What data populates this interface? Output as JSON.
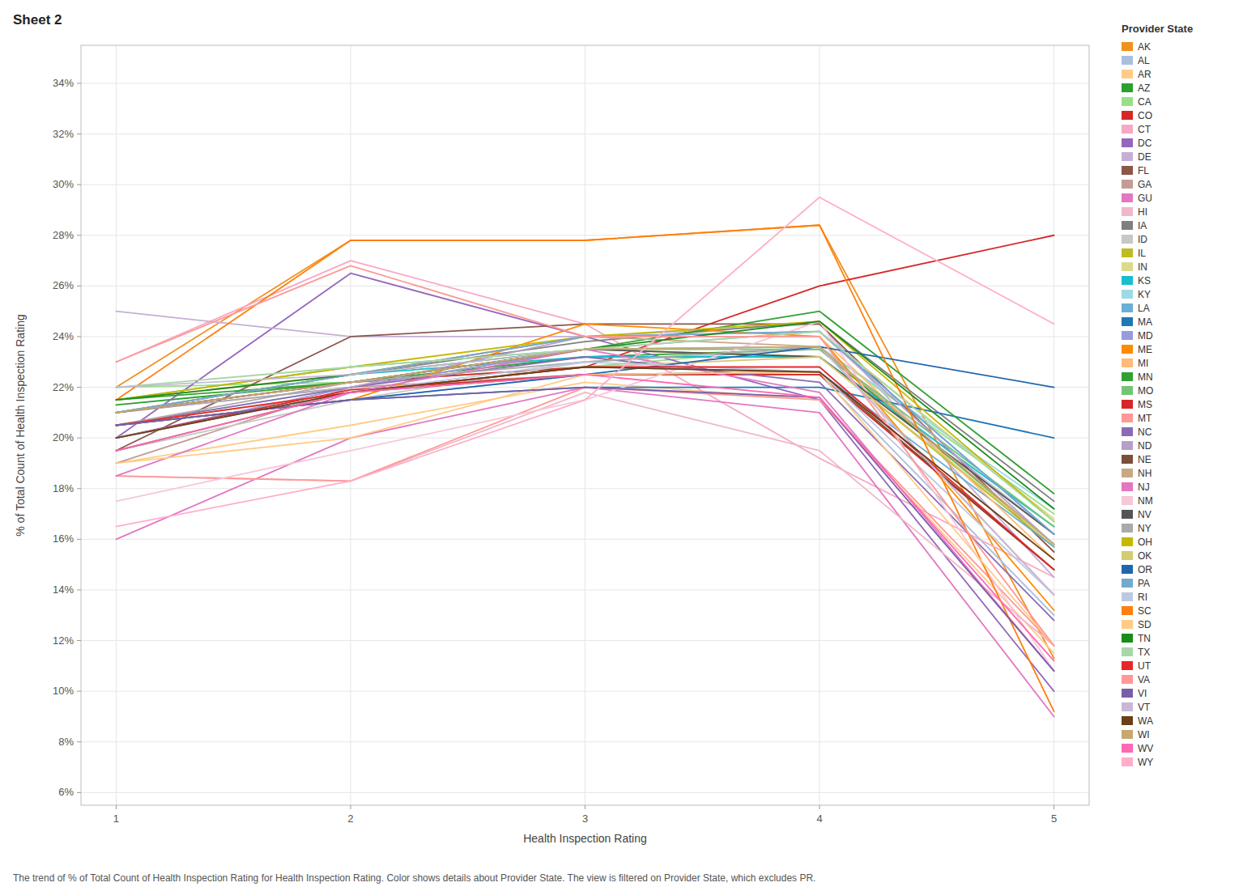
{
  "chart_data": {
    "type": "line",
    "title": "Sheet 2",
    "x_label": "Health Inspection Rating",
    "y_label": "% of Total Count of Health Inspection Rating",
    "caption": "The trend of % of Total Count of Health Inspection Rating for Health Inspection Rating.  Color shows details about Provider State. The view is filtered on Provider State, which excludes PR.",
    "legend_title": "Provider State",
    "legend": "right",
    "grid": true,
    "x": [
      1,
      2,
      3,
      4,
      5
    ],
    "xlim": [
      0.85,
      5.15
    ],
    "xticks": [
      1,
      2,
      3,
      4,
      5
    ],
    "ylim": [
      0.055,
      0.355
    ],
    "yticks": [
      {
        "value": 0.06,
        "label": "6%"
      },
      {
        "value": 0.08,
        "label": "8%"
      },
      {
        "value": 0.1,
        "label": "10%"
      },
      {
        "value": 0.12,
        "label": "12%"
      },
      {
        "value": 0.14,
        "label": "14%"
      },
      {
        "value": 0.16,
        "label": "16%"
      },
      {
        "value": 0.18,
        "label": "18%"
      },
      {
        "value": 0.2,
        "label": "20%"
      },
      {
        "value": 0.22,
        "label": "22%"
      },
      {
        "value": 0.24,
        "label": "24%"
      },
      {
        "value": 0.26,
        "label": "26%"
      },
      {
        "value": 0.28,
        "label": "28%"
      },
      {
        "value": 0.3,
        "label": "30%"
      },
      {
        "value": 0.32,
        "label": "32%"
      },
      {
        "value": 0.34,
        "label": "34%"
      }
    ],
    "series": [
      {
        "name": "AK",
        "color": "#F0901E",
        "values": [
          0.22,
          0.278,
          0.278,
          0.284,
          0.113
        ]
      },
      {
        "name": "AL",
        "color": "#AABFDD",
        "values": [
          0.205,
          0.215,
          0.225,
          0.225,
          0.13
        ]
      },
      {
        "name": "AR",
        "color": "#FFCC88",
        "values": [
          0.19,
          0.205,
          0.222,
          0.215,
          0.115
        ]
      },
      {
        "name": "AZ",
        "color": "#2CA02C",
        "values": [
          0.213,
          0.222,
          0.232,
          0.235,
          0.158
        ]
      },
      {
        "name": "CA",
        "color": "#98DF8A",
        "values": [
          0.22,
          0.222,
          0.228,
          0.236,
          0.17
        ]
      },
      {
        "name": "CO",
        "color": "#D62728",
        "values": [
          0.21,
          0.222,
          0.228,
          0.26,
          0.28
        ]
      },
      {
        "name": "CT",
        "color": "#F7A8C4",
        "values": [
          0.23,
          0.27,
          0.245,
          0.192,
          0.145
        ]
      },
      {
        "name": "DC",
        "color": "#9467BD",
        "values": [
          0.2,
          0.265,
          0.24,
          0.215,
          0.1
        ]
      },
      {
        "name": "DE",
        "color": "#C5B0D5",
        "values": [
          0.25,
          0.24,
          0.24,
          0.245,
          0.145
        ]
      },
      {
        "name": "FL",
        "color": "#8C564B",
        "values": [
          0.195,
          0.24,
          0.245,
          0.245,
          0.155
        ]
      },
      {
        "name": "GA",
        "color": "#C49C94",
        "values": [
          0.19,
          0.22,
          0.225,
          0.225,
          0.148
        ]
      },
      {
        "name": "GU",
        "color": "#E377C2",
        "values": [
          0.16,
          0.2,
          0.22,
          0.21,
          0.09
        ]
      },
      {
        "name": "HI",
        "color": "#F0B8C8",
        "values": [
          0.185,
          0.183,
          0.218,
          0.195,
          0.118
        ]
      },
      {
        "name": "IA",
        "color": "#7F7F7F",
        "values": [
          0.21,
          0.225,
          0.238,
          0.246,
          0.175
        ]
      },
      {
        "name": "ID",
        "color": "#C7C7C7",
        "values": [
          0.195,
          0.215,
          0.23,
          0.235,
          0.162
        ]
      },
      {
        "name": "IL",
        "color": "#BCBD22",
        "values": [
          0.21,
          0.22,
          0.235,
          0.232,
          0.157
        ]
      },
      {
        "name": "IN",
        "color": "#DBDB8D",
        "values": [
          0.21,
          0.225,
          0.24,
          0.242,
          0.168
        ]
      },
      {
        "name": "KS",
        "color": "#17BECF",
        "values": [
          0.21,
          0.225,
          0.232,
          0.232,
          0.165
        ]
      },
      {
        "name": "KY",
        "color": "#9EDAE5",
        "values": [
          0.205,
          0.22,
          0.235,
          0.236,
          0.172
        ]
      },
      {
        "name": "LA",
        "color": "#6BAED6",
        "values": [
          0.2,
          0.218,
          0.228,
          0.226,
          0.157
        ]
      },
      {
        "name": "MA",
        "color": "#1F77B4",
        "values": [
          0.205,
          0.215,
          0.22,
          0.22,
          0.2
        ]
      },
      {
        "name": "MD",
        "color": "#9999DD",
        "values": [
          0.2,
          0.22,
          0.235,
          0.242,
          0.162
        ]
      },
      {
        "name": "ME",
        "color": "#FF8C00",
        "values": [
          0.205,
          0.215,
          0.245,
          0.24,
          0.132
        ]
      },
      {
        "name": "MI",
        "color": "#FFBB78",
        "values": [
          0.215,
          0.225,
          0.24,
          0.24,
          0.152
        ]
      },
      {
        "name": "MN",
        "color": "#33A033",
        "values": [
          0.215,
          0.222,
          0.235,
          0.25,
          0.178
        ]
      },
      {
        "name": "MO",
        "color": "#74C476",
        "values": [
          0.215,
          0.228,
          0.235,
          0.235,
          0.165
        ]
      },
      {
        "name": "MS",
        "color": "#D62728",
        "values": [
          0.2,
          0.219,
          0.225,
          0.225,
          0.148
        ]
      },
      {
        "name": "MT",
        "color": "#FF9896",
        "values": [
          0.185,
          0.183,
          0.22,
          0.215,
          0.118
        ]
      },
      {
        "name": "NC",
        "color": "#8B6BB1",
        "values": [
          0.205,
          0.22,
          0.232,
          0.222,
          0.128
        ]
      },
      {
        "name": "ND",
        "color": "#B5A0CC",
        "values": [
          0.21,
          0.22,
          0.24,
          0.242,
          0.158
        ]
      },
      {
        "name": "NE",
        "color": "#7B4F3A",
        "values": [
          0.195,
          0.218,
          0.225,
          0.226,
          0.148
        ]
      },
      {
        "name": "NH",
        "color": "#C9A882",
        "values": [
          0.21,
          0.225,
          0.24,
          0.236,
          0.138
        ]
      },
      {
        "name": "NJ",
        "color": "#E377C2",
        "values": [
          0.185,
          0.218,
          0.235,
          0.218,
          0.108
        ]
      },
      {
        "name": "NM",
        "color": "#F7C6D8",
        "values": [
          0.175,
          0.195,
          0.215,
          0.246,
          0.108
        ]
      },
      {
        "name": "NV",
        "color": "#555555",
        "values": [
          0.21,
          0.222,
          0.235,
          0.232,
          0.162
        ]
      },
      {
        "name": "NY",
        "color": "#AAAAAA",
        "values": [
          0.205,
          0.222,
          0.23,
          0.236,
          0.158
        ]
      },
      {
        "name": "OH",
        "color": "#C5B800",
        "values": [
          0.215,
          0.228,
          0.24,
          0.246,
          0.167
        ]
      },
      {
        "name": "OK",
        "color": "#D4CC70",
        "values": [
          0.205,
          0.218,
          0.228,
          0.232,
          0.158
        ]
      },
      {
        "name": "OR",
        "color": "#2166AC",
        "values": [
          0.205,
          0.215,
          0.225,
          0.236,
          0.22
        ]
      },
      {
        "name": "PA",
        "color": "#74A9CF",
        "values": [
          0.21,
          0.225,
          0.24,
          0.242,
          0.162
        ]
      },
      {
        "name": "RI",
        "color": "#BDC9E1",
        "values": [
          0.2,
          0.218,
          0.23,
          0.226,
          0.138
        ]
      },
      {
        "name": "SC",
        "color": "#FF7F0E",
        "values": [
          0.215,
          0.278,
          0.278,
          0.284,
          0.092
        ]
      },
      {
        "name": "SD",
        "color": "#FFCC88",
        "values": [
          0.19,
          0.2,
          0.225,
          0.226,
          0.118
        ]
      },
      {
        "name": "TN",
        "color": "#1A8C1A",
        "values": [
          0.215,
          0.225,
          0.235,
          0.246,
          0.172
        ]
      },
      {
        "name": "TX",
        "color": "#A8D8A8",
        "values": [
          0.22,
          0.228,
          0.235,
          0.242,
          0.167
        ]
      },
      {
        "name": "UT",
        "color": "#E8252A",
        "values": [
          0.205,
          0.218,
          0.228,
          0.228,
          0.148
        ]
      },
      {
        "name": "VA",
        "color": "#FF9896",
        "values": [
          0.23,
          0.268,
          0.24,
          0.24,
          0.118
        ]
      },
      {
        "name": "VI",
        "color": "#7B5EA7",
        "values": [
          0.205,
          0.215,
          0.22,
          0.216,
          0.108
        ]
      },
      {
        "name": "VT",
        "color": "#C8B8D8",
        "values": [
          0.22,
          0.225,
          0.235,
          0.236,
          0.138
        ]
      },
      {
        "name": "WA",
        "color": "#6B3F1A",
        "values": [
          0.2,
          0.218,
          0.228,
          0.226,
          0.152
        ]
      },
      {
        "name": "WI",
        "color": "#C8A870",
        "values": [
          0.21,
          0.222,
          0.235,
          0.236,
          0.158
        ]
      },
      {
        "name": "WV",
        "color": "#FF69B4",
        "values": [
          0.195,
          0.218,
          0.225,
          0.216,
          0.112
        ]
      },
      {
        "name": "WY",
        "color": "#FFAEC9",
        "values": [
          0.165,
          0.183,
          0.215,
          0.295,
          0.245
        ]
      }
    ]
  }
}
